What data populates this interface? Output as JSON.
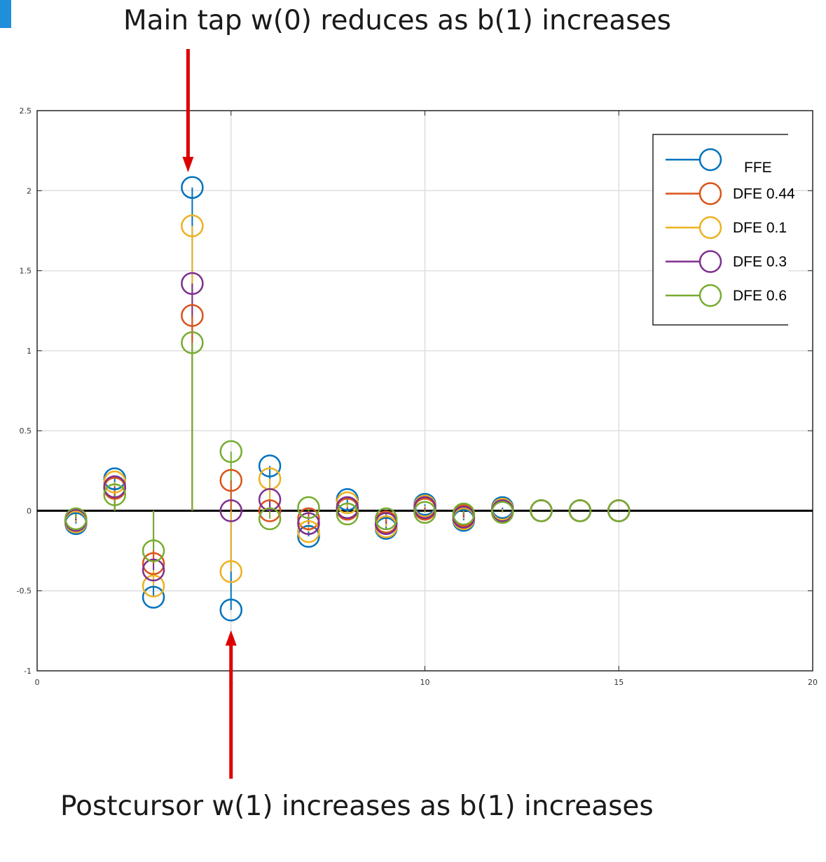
{
  "annotations": {
    "top": "Main tap w(0) reduces as b(1) increases",
    "bottom": "Postcursor w(1) increases as b(1) increases"
  },
  "colors": {
    "FFE": "#0072bd",
    "DFE 0.44": "#d95319",
    "DFE 0.1": "#edb120",
    "DFE 0.3": "#7e2f8e",
    "DFE 0.6": "#77ac30",
    "arrow": "#dd0000",
    "slide_mark": "#1f8fd9"
  },
  "chart_data": {
    "type": "scatter",
    "subtype": "stem",
    "title": "",
    "xlabel": "",
    "ylabel": "",
    "xlim": [
      0,
      20
    ],
    "ylim": [
      -1,
      2.5
    ],
    "xticks": [
      "0",
      "5",
      "10",
      "15",
      "20"
    ],
    "yticks": [
      "-1",
      "-0.5",
      "0",
      "0.5",
      "1",
      "1.5",
      "2",
      "2.5"
    ],
    "grid": true,
    "legend_position": "top-right",
    "x": [
      1,
      2,
      3,
      4,
      5,
      6,
      7,
      8,
      9,
      10,
      11,
      12,
      13,
      14,
      15
    ],
    "series": [
      {
        "name": "FFE",
        "values": [
          -0.08,
          0.2,
          -0.54,
          2.02,
          -0.62,
          0.28,
          -0.16,
          0.07,
          -0.11,
          0.04,
          -0.06,
          0.02,
          0.0,
          0.0,
          0.0
        ]
      },
      {
        "name": "DFE 0.44",
        "values": [
          -0.06,
          0.14,
          -0.33,
          1.22,
          0.19,
          0.0,
          -0.05,
          0.01,
          -0.07,
          0.01,
          -0.03,
          0.0,
          0.0,
          0.0,
          0.0
        ]
      },
      {
        "name": "DFE 0.1",
        "values": [
          -0.07,
          0.18,
          -0.47,
          1.78,
          -0.38,
          0.2,
          -0.13,
          0.05,
          -0.1,
          0.03,
          -0.05,
          0.01,
          0.0,
          0.0,
          0.0
        ]
      },
      {
        "name": "DFE 0.3",
        "values": [
          -0.06,
          0.15,
          -0.37,
          1.42,
          0.0,
          0.07,
          -0.08,
          0.02,
          -0.08,
          0.02,
          -0.04,
          0.0,
          0.0,
          0.0,
          0.0
        ]
      },
      {
        "name": "DFE 0.6",
        "values": [
          -0.05,
          0.1,
          -0.25,
          1.05,
          0.37,
          -0.05,
          0.02,
          -0.02,
          -0.05,
          -0.01,
          -0.02,
          -0.01,
          0.0,
          0.0,
          0.0
        ]
      }
    ]
  }
}
